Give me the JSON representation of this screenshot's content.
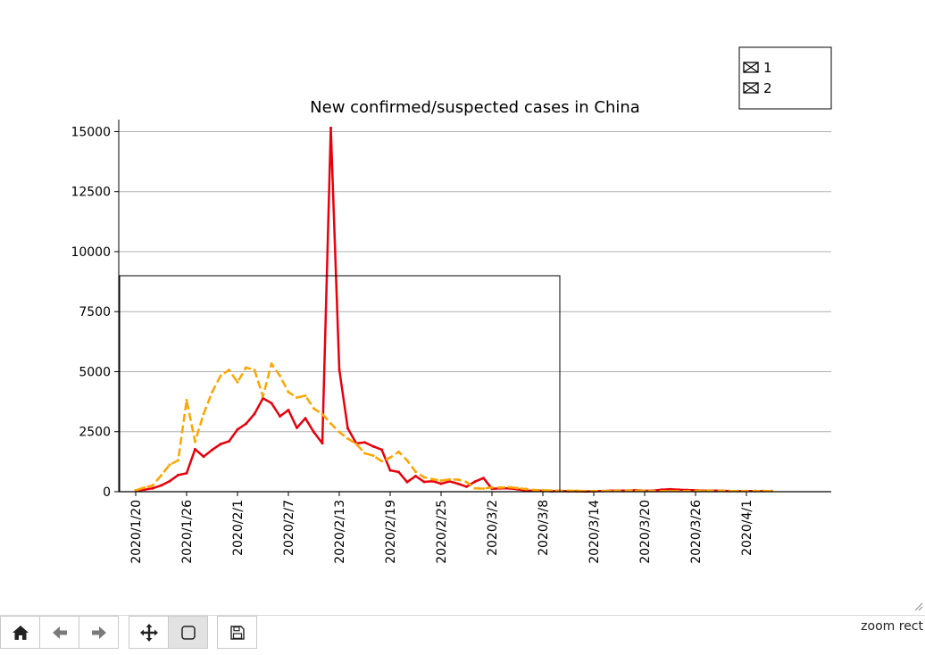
{
  "chart_data": {
    "type": "line",
    "title": "New confirmed/suspected cases in China",
    "xlabel": "",
    "ylabel": "",
    "x_start": "2020-01-20",
    "x_end": "2020-04-04",
    "xlim": [
      "2020-01-18",
      "2020-04-11"
    ],
    "ylim": [
      0,
      15500
    ],
    "yticks": [
      0,
      2500,
      5000,
      7500,
      10000,
      12500,
      15000
    ],
    "xtick_labels": [
      "2020/1/20",
      "2020/1/26",
      "2020/2/1",
      "2020/2/7",
      "2020/2/13",
      "2020/2/19",
      "2020/2/25",
      "2020/3/2",
      "2020/3/8",
      "2020/3/14",
      "2020/3/20",
      "2020/3/26",
      "2020/4/1"
    ],
    "grid_y": true,
    "legend": {
      "placement": "top-right",
      "entries": [
        "1",
        "2"
      ]
    },
    "series": [
      {
        "name": "1",
        "color": "#e8000b",
        "values": [
          50,
          80,
          140,
          260,
          440,
          690,
          770,
          1770,
          1460,
          1740,
          1980,
          2100,
          2590,
          2830,
          3240,
          3890,
          3690,
          3140,
          3400,
          2660,
          3060,
          2480,
          2020,
          15150,
          5090,
          2640,
          2010,
          2050,
          1890,
          1750,
          890,
          820,
          400,
          650,
          410,
          440,
          330,
          430,
          330,
          210,
          420,
          570,
          120,
          140,
          140,
          100,
          50,
          40,
          40,
          20,
          30,
          20,
          20,
          10,
          20,
          30,
          40,
          50,
          50,
          60,
          40,
          40,
          80,
          100,
          80,
          70,
          60,
          50,
          50,
          40,
          30,
          30,
          30,
          30,
          30,
          30
        ]
      },
      {
        "name": "2",
        "color": "#ffa500",
        "values": [
          60,
          170,
          260,
          680,
          1120,
          1310,
          3810,
          2080,
          3240,
          4150,
          4830,
          5070,
          4560,
          5170,
          5070,
          3970,
          5330,
          4830,
          4150,
          3920,
          4000,
          3460,
          3230,
          2840,
          2480,
          2210,
          1990,
          1600,
          1500,
          1270,
          1420,
          1660,
          1300,
          830,
          600,
          520,
          460,
          510,
          500,
          400,
          140,
          130,
          180,
          170,
          190,
          150,
          110,
          70,
          60,
          50,
          40,
          40,
          40,
          30,
          30,
          30,
          30,
          40,
          40,
          40,
          40,
          30,
          30,
          30,
          30,
          30,
          40,
          40,
          40,
          40,
          30,
          30,
          30,
          30,
          30,
          30
        ]
      }
    ]
  },
  "toolbar": {
    "buttons": [
      {
        "name": "home-button",
        "icon": "home-icon",
        "label": "Home"
      },
      {
        "name": "back-button",
        "icon": "arrow-left-icon",
        "label": "Back"
      },
      {
        "name": "forward-button",
        "icon": "arrow-right-icon",
        "label": "Forward"
      },
      {
        "name": "pan-button",
        "icon": "move-icon",
        "label": "Pan"
      },
      {
        "name": "zoom-button",
        "icon": "zoom-rect-icon",
        "label": "Zoom",
        "active": true
      },
      {
        "name": "save-button",
        "icon": "save-icon",
        "label": "Save"
      }
    ],
    "mode_label": "zoom rect"
  }
}
